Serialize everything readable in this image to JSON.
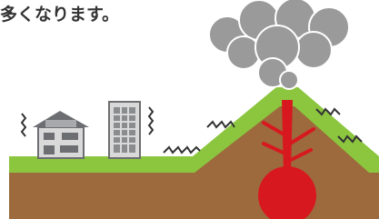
{
  "text": "多くなります。"
}
